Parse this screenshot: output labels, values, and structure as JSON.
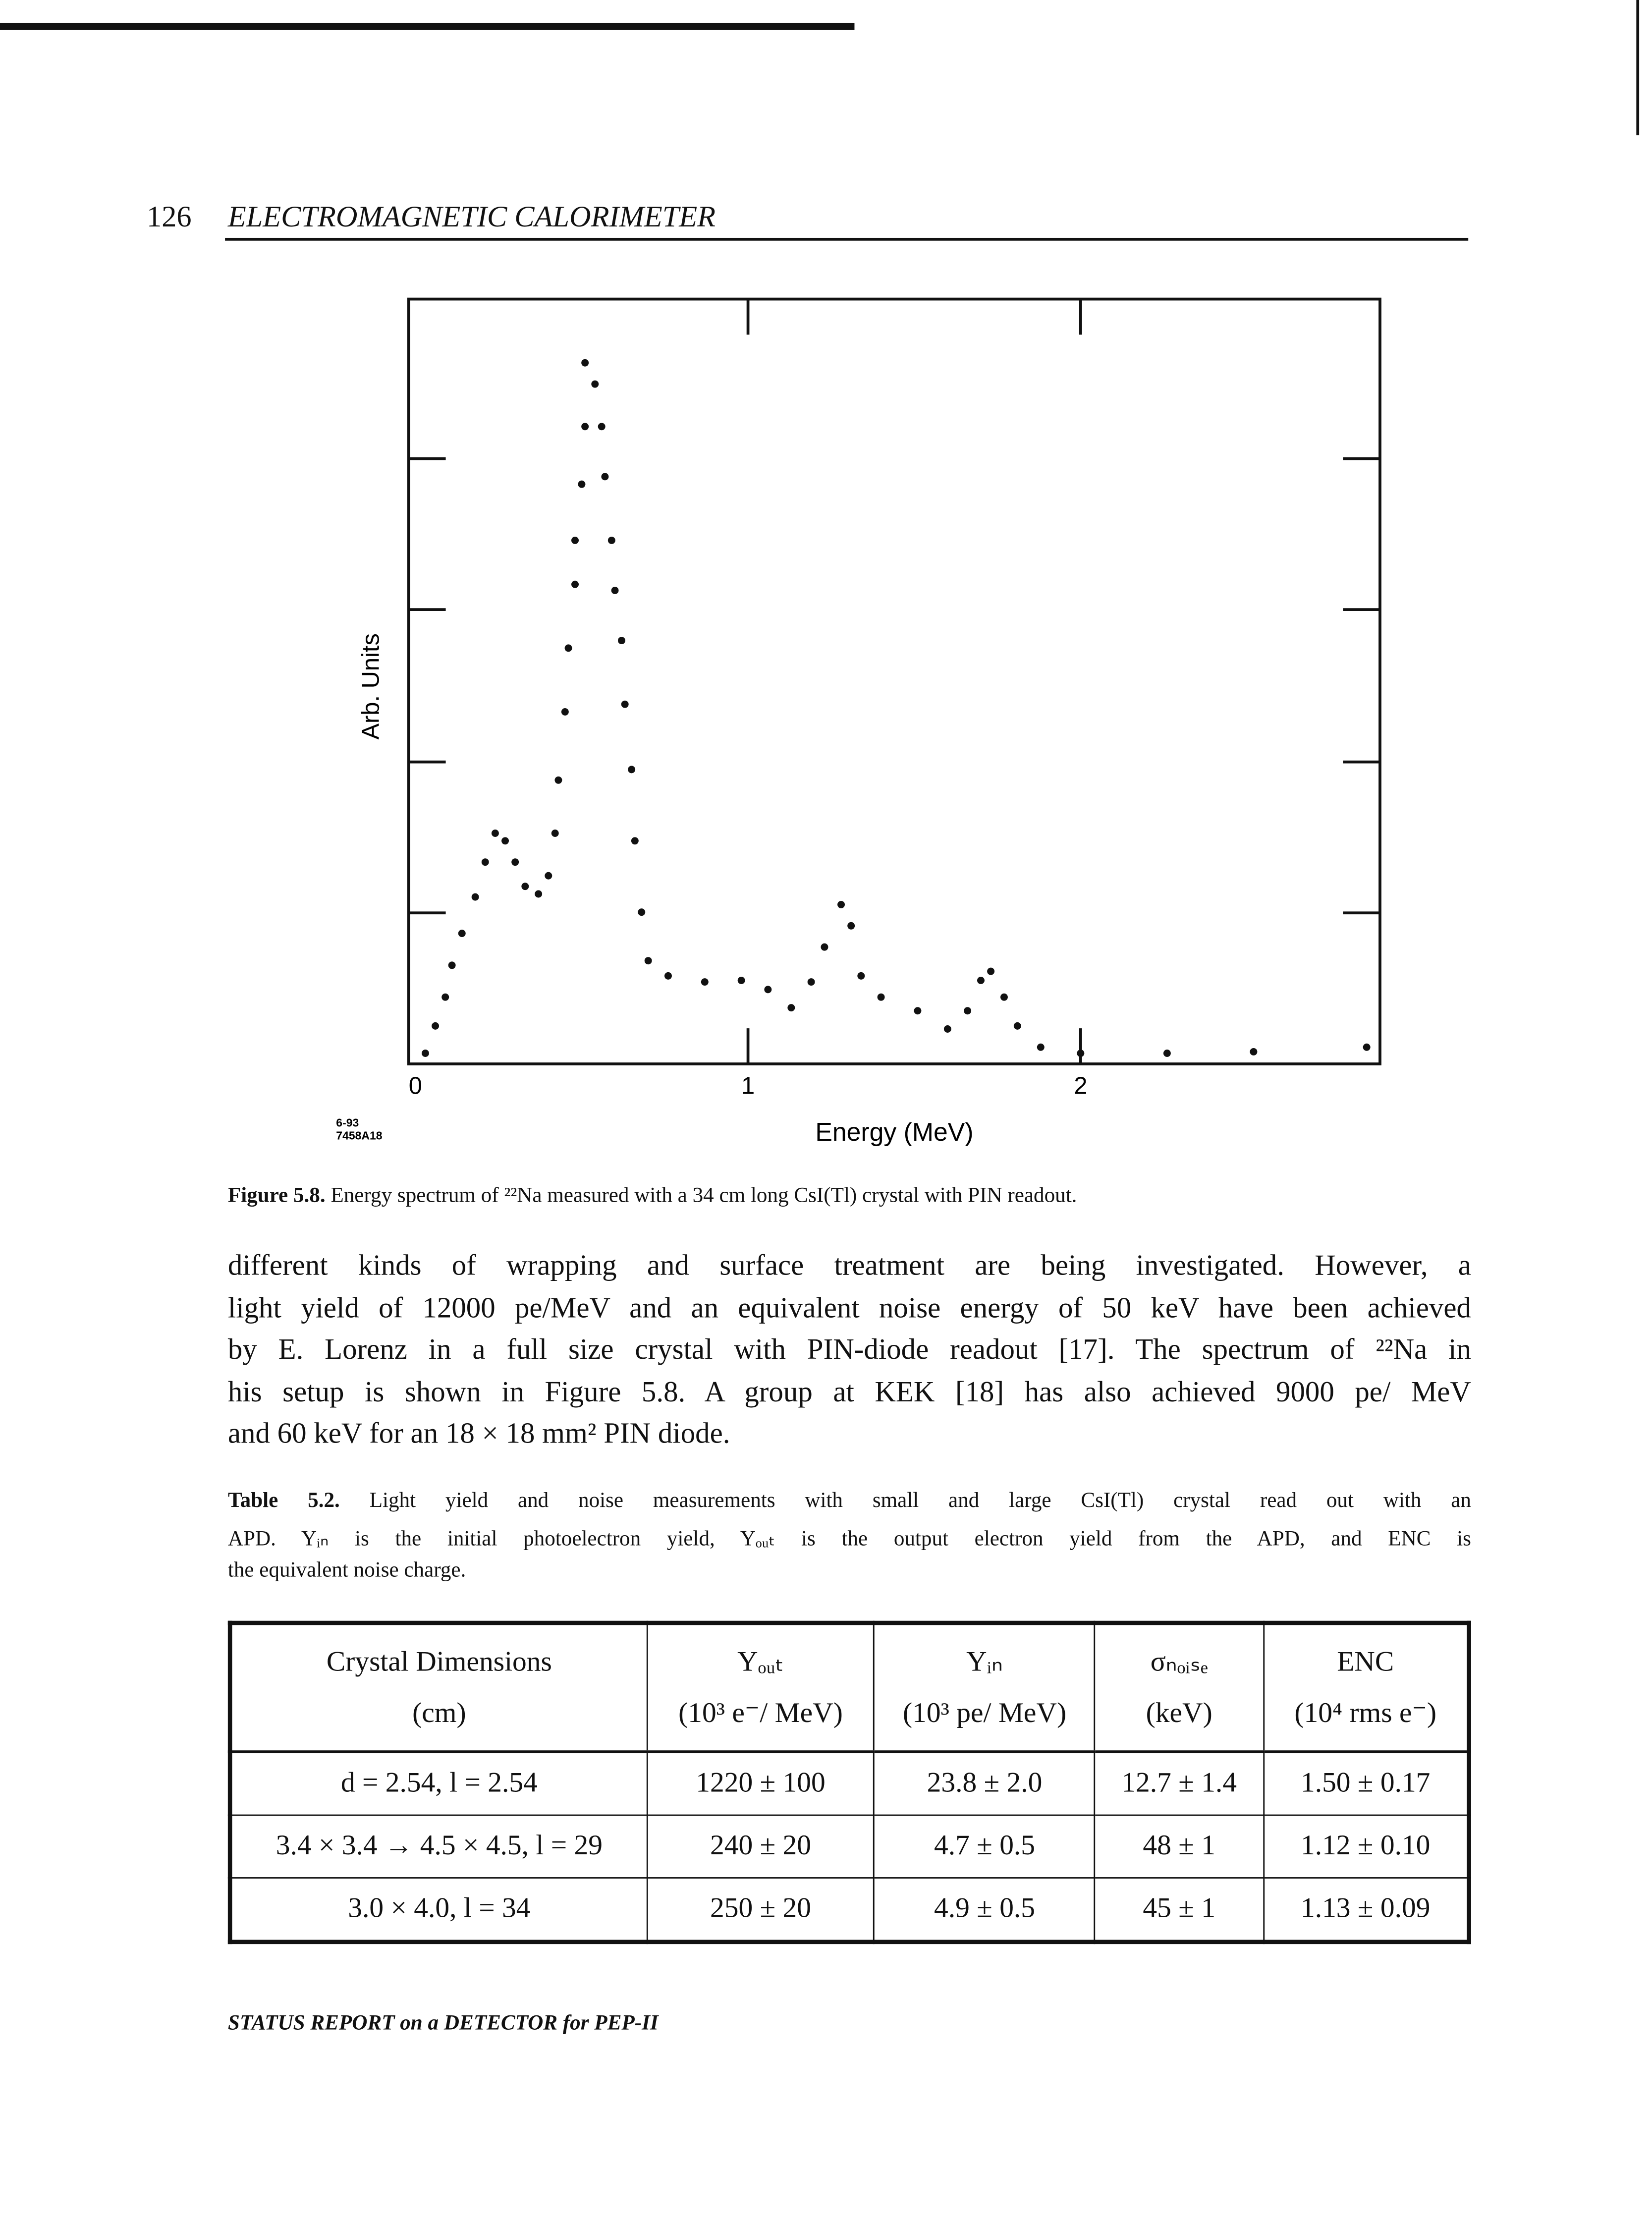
{
  "header": {
    "page_number": "126",
    "running_title": "ELECTROMAGNETIC CALORIMETER"
  },
  "chart_data": {
    "type": "scatter",
    "y_label": "Arb. Units",
    "x_label": "Energy (MeV)",
    "figure_code": [
      "6-93",
      "7458A18"
    ],
    "color": "#111111",
    "x": [
      0.03,
      0.06,
      0.09,
      0.11,
      0.14,
      0.18,
      0.21,
      0.24,
      0.27,
      0.3,
      0.33,
      0.37,
      0.4,
      0.42,
      0.43,
      0.45,
      0.46,
      0.48,
      0.48,
      0.5,
      0.51,
      0.51,
      0.54,
      0.56,
      0.57,
      0.59,
      0.6,
      0.62,
      0.63,
      0.65,
      0.66,
      0.68,
      0.7,
      0.76,
      0.87,
      0.98,
      1.06,
      1.13,
      1.19,
      1.23,
      1.28,
      1.31,
      1.34,
      1.4,
      1.51,
      1.6,
      1.66,
      1.7,
      1.73,
      1.77,
      1.81,
      1.88,
      2.0,
      2.26,
      2.52,
      2.86
    ],
    "values": [
      0.07,
      0.25,
      0.44,
      0.65,
      0.86,
      1.1,
      1.33,
      1.52,
      1.47,
      1.33,
      1.17,
      1.12,
      1.24,
      1.52,
      1.87,
      2.32,
      2.74,
      3.16,
      3.45,
      3.82,
      4.2,
      4.62,
      4.48,
      4.2,
      3.87,
      3.45,
      3.12,
      2.79,
      2.37,
      1.94,
      1.47,
      1.0,
      0.68,
      0.58,
      0.54,
      0.55,
      0.49,
      0.37,
      0.54,
      0.77,
      1.05,
      0.91,
      0.58,
      0.44,
      0.35,
      0.23,
      0.35,
      0.55,
      0.61,
      0.44,
      0.25,
      0.11,
      0.07,
      0.07,
      0.08,
      0.11
    ],
    "xlim": [
      -0.02,
      2.9
    ],
    "ylim": [
      0,
      5.04
    ],
    "xticks": [
      0,
      1,
      2
    ]
  },
  "caption": {
    "label": "Figure 5.8.",
    "text": "Energy spectrum of ²²Na measured with a 34 cm long CsI(Tl) crystal with PIN readout."
  },
  "body": {
    "lines": [
      "different kinds of wrapping and surface treatment are being investigated. However, a",
      "light yield of 12000 pe/MeV and an equivalent noise energy of 50 keV have been achieved",
      "by E. Lorenz in a full size crystal with PIN-diode readout [17]. The spectrum of ²²Na in",
      "his setup is shown in Figure 5.8. A group at KEK [18] has also achieved 9000 pe/ MeV",
      "and 60 keV for an 18 × 18 mm² PIN diode."
    ]
  },
  "table_caption": {
    "label": "Table 5.2.",
    "lines": [
      "Light yield and noise measurements with small and large CsI(Tl) crystal read out with an",
      "APD. Yᵢₙ is the initial photoelectron yield, Yₒᵤₜ is the output electron yield from the APD, and ENC is",
      "the equivalent noise charge."
    ]
  },
  "table": {
    "headers": [
      [
        "Crystal Dimensions",
        "(cm)"
      ],
      [
        "Yₒᵤₜ",
        "(10³ e⁻/ MeV)"
      ],
      [
        "Yᵢₙ",
        "(10³ pe/ MeV)"
      ],
      [
        "σₙₒᵢₛₑ",
        "(keV)"
      ],
      [
        "ENC",
        "(10⁴ rms e⁻)"
      ]
    ],
    "rows": [
      [
        "d = 2.54, l = 2.54",
        "1220 ± 100",
        "23.8 ± 2.0",
        "12.7 ± 1.4",
        "1.50 ± 0.17"
      ],
      [
        "3.4 × 3.4 → 4.5 × 4.5, l = 29",
        "240 ± 20",
        "4.7 ± 0.5",
        "48 ± 1",
        "1.12 ± 0.10"
      ],
      [
        "3.0 × 4.0, l = 34",
        "250 ± 20",
        "4.9 ± 0.5",
        "45 ± 1",
        "1.13 ± 0.09"
      ]
    ]
  },
  "footer": "STATUS REPORT on a DETECTOR for PEP-II"
}
